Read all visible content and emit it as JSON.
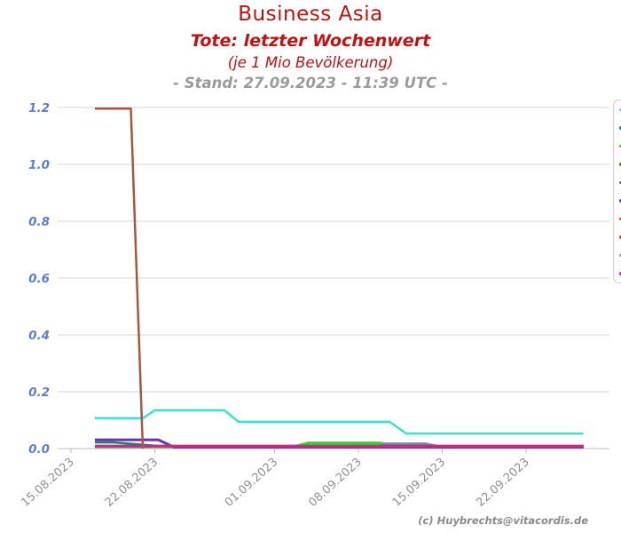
{
  "header": {
    "title": "Business Asia",
    "subtitle": "Tote: letzter Wochenwert",
    "unit_note": "(je 1 Mio Bevölkerung)",
    "stand": "- Stand: 27.09.2023 - 11:39 UTC -"
  },
  "footer": {
    "credit": "(c) Huybrechts@vitacordis.de"
  },
  "colors": {
    "title_red": "#c11212",
    "stand_gray": "#9a9a9a",
    "y_label_blue": "#5b7fd4",
    "x_label_gray": "#8f8f8f",
    "gridline": "#e2e2e2",
    "axis_line": "#c9c9c9",
    "tick_mark": "#bbbbbb"
  },
  "chart_data": {
    "type": "line",
    "title": "Business Asia",
    "subtitle": "Tote: letzter Wochenwert",
    "unit_note": "(je 1 Mio Bevölkerung)",
    "stand": "- Stand: 27.09.2023 - 11:39 UTC -",
    "grid": true,
    "legend_position": "right-outside-clipped",
    "y_axis": {
      "tick_values": [
        0,
        0.2,
        0.4,
        0.6,
        0.8,
        1.0,
        1.2
      ],
      "tick_labels": [
        "0.0",
        "0.2",
        "0.4",
        "0.6",
        "0.8",
        "1.0",
        "1.2"
      ],
      "range": [
        0,
        1.27
      ]
    },
    "x_axis": {
      "tick_labels": [
        "15.08.2023",
        "22.08.2023",
        "01.09.2023",
        "08.09.2023",
        "15.09.2023",
        "22.09.2023"
      ],
      "tick_day_offsets": [
        0,
        7,
        17,
        24,
        31,
        38
      ],
      "first_tick_date": "15.08.2023",
      "data_start_day": 2,
      "data_end_day": 42.8
    },
    "series": [
      {
        "name": "series-teal",
        "color": "#117f7f",
        "width": 2.5,
        "points": [
          [
            2,
            0.022
          ],
          [
            3.5,
            0.022
          ],
          [
            8,
            0.007
          ],
          [
            42.8,
            0.007
          ]
        ]
      },
      {
        "name": "series-green",
        "color": "#2fd32f",
        "width": 3.5,
        "points": [
          [
            2,
            0.007
          ],
          [
            18.7,
            0.007
          ],
          [
            19.8,
            0.019
          ],
          [
            25.9,
            0.019
          ],
          [
            27.2,
            0.007
          ],
          [
            42.8,
            0.007
          ]
        ]
      },
      {
        "name": "series-grayblue",
        "color": "#6b8cae",
        "width": 3,
        "points": [
          [
            2,
            0.007
          ],
          [
            25.4,
            0.007
          ],
          [
            26.3,
            0.017
          ],
          [
            29.6,
            0.017
          ],
          [
            30.8,
            0.007
          ],
          [
            42.8,
            0.007
          ]
        ]
      },
      {
        "name": "series-purple",
        "color": "#6633aa",
        "width": 3,
        "points": [
          [
            2,
            0.031
          ],
          [
            7.3,
            0.031
          ],
          [
            8.6,
            0.005
          ],
          [
            42.8,
            0.005
          ]
        ]
      },
      {
        "name": "series-magenta",
        "color": "#d02878",
        "width": 3,
        "points": [
          [
            2,
            0.009
          ],
          [
            42.8,
            0.009
          ]
        ]
      },
      {
        "name": "series-turquoise",
        "color": "#3fe0c8",
        "width": 2.5,
        "points": [
          [
            2,
            0.107
          ],
          [
            6,
            0.107
          ],
          [
            7,
            0.135
          ],
          [
            12.8,
            0.135
          ],
          [
            14,
            0.094
          ],
          [
            26.6,
            0.094
          ],
          [
            28,
            0.053
          ],
          [
            42.8,
            0.053
          ]
        ]
      },
      {
        "name": "series-sienna",
        "color": "#a9563a",
        "width": 2.5,
        "points": [
          [
            2,
            1.196
          ],
          [
            5,
            1.196
          ],
          [
            6,
            0
          ]
        ]
      }
    ],
    "legend_swatch_colors": [
      "#40e0d0",
      "#0e7f7f",
      "#00e400",
      "#556b2f",
      "#696969",
      "#6633aa",
      "#ff4500",
      "#a9563a",
      "#999999",
      "#ff1493"
    ]
  }
}
